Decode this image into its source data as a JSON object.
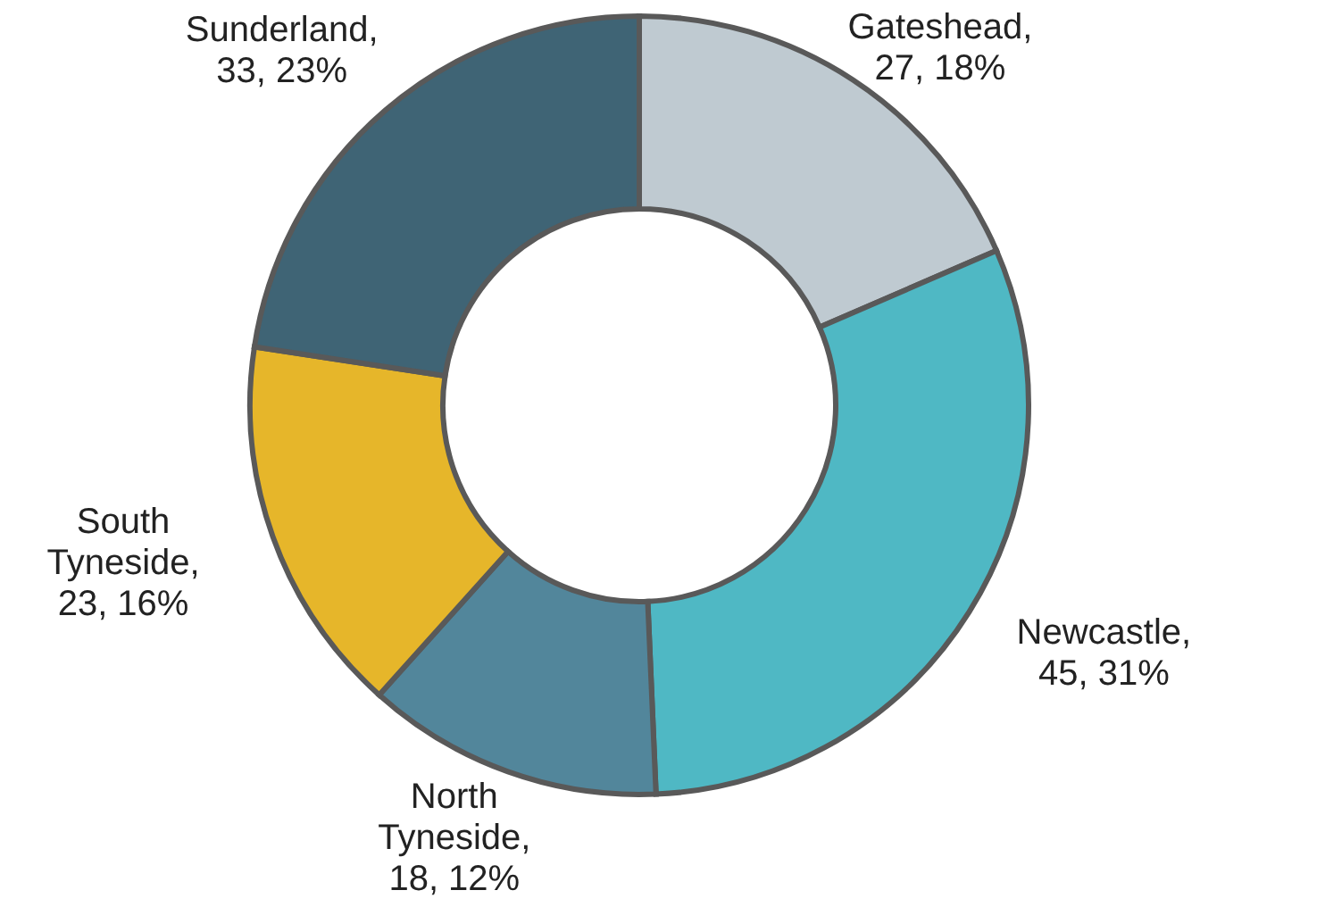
{
  "chart_data": {
    "type": "donut",
    "categories": [
      "Gateshead",
      "Newcastle",
      "North Tyneside",
      "South Tyneside",
      "Sunderland"
    ],
    "values": [
      27,
      45,
      18,
      23,
      33
    ],
    "colors": [
      "#bfcad1",
      "#4fb8c4",
      "#52869b",
      "#e6b62a",
      "#3f6475"
    ],
    "value_labels": [
      ", 27, 18%",
      ", 45, 31%",
      ", 18, 12%",
      ", 23, 16%",
      ", 33, 23%"
    ]
  }
}
